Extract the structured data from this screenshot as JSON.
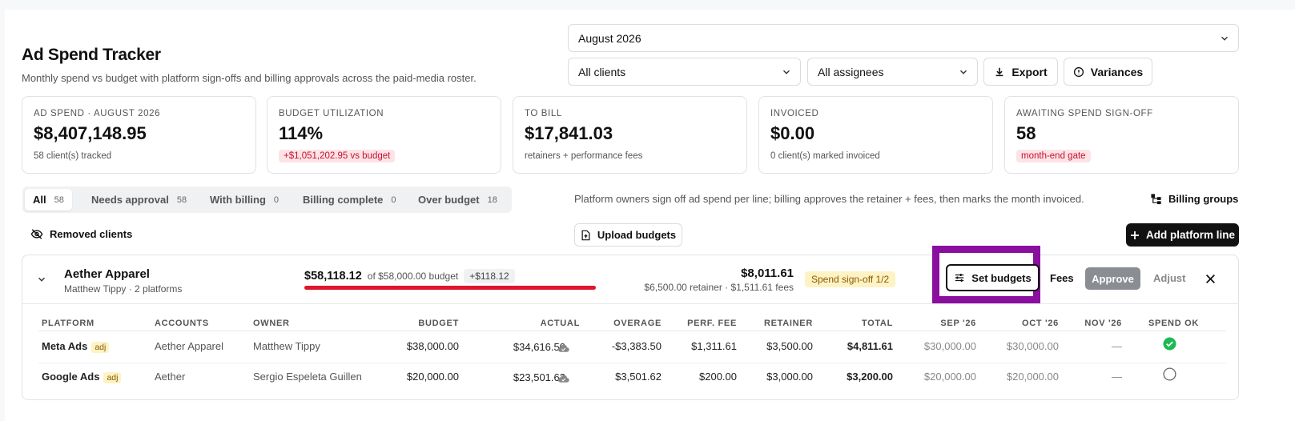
{
  "header": {
    "title": "Ad Spend Tracker",
    "subtitle": "Monthly spend vs budget with platform sign-offs and billing approvals across the paid-media roster.",
    "month": "August 2026",
    "clients": "All clients",
    "assignees": "All assignees",
    "export": "Export",
    "variances": "Variances"
  },
  "cards": [
    {
      "label": "AD SPEND · AUGUST 2026",
      "value": "$8,407,148.95",
      "sub": "58 client(s) tracked"
    },
    {
      "label": "BUDGET UTILIZATION",
      "value": "114%",
      "badge": "+$1,051,202.95 vs budget"
    },
    {
      "label": "TO BILL",
      "value": "$17,841.03",
      "sub": "retainers + performance fees"
    },
    {
      "label": "INVOICED",
      "value": "$0.00",
      "sub": "0 client(s) marked invoiced"
    },
    {
      "label": "AWAITING SPEND SIGN-OFF",
      "value": "58",
      "badge": "month-end gate"
    }
  ],
  "tabs": [
    {
      "label": "All",
      "count": "58"
    },
    {
      "label": "Needs approval",
      "count": "58"
    },
    {
      "label": "With billing",
      "count": "0"
    },
    {
      "label": "Billing complete",
      "count": "0"
    },
    {
      "label": "Over budget",
      "count": "18"
    }
  ],
  "info": "Platform owners sign off ad spend per line; billing approves the retainer + fees, then marks the month invoiced.",
  "actions": {
    "billing_groups": "Billing groups",
    "removed_clients": "Removed clients",
    "upload_budgets": "Upload budgets",
    "add_platform_line": "Add platform line"
  },
  "group": {
    "name": "Aether Apparel",
    "meta": "Matthew Tippy · 2 platforms",
    "spend": "$58,118.12",
    "of_budget": "of $58,000.00 budget",
    "over": "+$118.12",
    "utilization": 1.002,
    "total": "$8,011.61",
    "total_sub": "$6,500.00 retainer · $1,511.61 fees",
    "signoff": "Spend sign-off 1/2",
    "set_budgets": "Set budgets",
    "fees": "Fees",
    "approve": "Approve",
    "adjust": "Adjust"
  },
  "table": {
    "columns": [
      "PLATFORM",
      "ACCOUNTS",
      "OWNER",
      "BUDGET",
      "ACTUAL",
      "OVERAGE",
      "PERF. FEE",
      "RETAINER",
      "TOTAL",
      "SEP '26",
      "OCT '26",
      "NOV '26",
      "SPEND OK"
    ],
    "adj_label": "adj",
    "rows": [
      {
        "platform": "Meta Ads",
        "account": "Aether Apparel",
        "owner": "Matthew Tippy",
        "budget": "$38,000.00",
        "actual": "$34,616.50",
        "overage": "-$3,383.50",
        "perf_fee": "$1,311.61",
        "retainer": "$3,500.00",
        "total": "$4,811.61",
        "sep": "$30,000.00",
        "oct": "$30,000.00",
        "nov": "—",
        "spend_ok": true
      },
      {
        "platform": "Google Ads",
        "account": "Aether",
        "owner": "Sergio Espeleta Guillen",
        "budget": "$20,000.00",
        "actual": "$23,501.62",
        "overage": "$3,501.62",
        "perf_fee": "$200.00",
        "retainer": "$3,000.00",
        "total": "$3,200.00",
        "sep": "$20,000.00",
        "oct": "$20,000.00",
        "nov": "—",
        "spend_ok": false
      }
    ]
  },
  "colors": {
    "accent": "#8b0f9f",
    "danger": "#e0152b",
    "success": "#1db954"
  }
}
